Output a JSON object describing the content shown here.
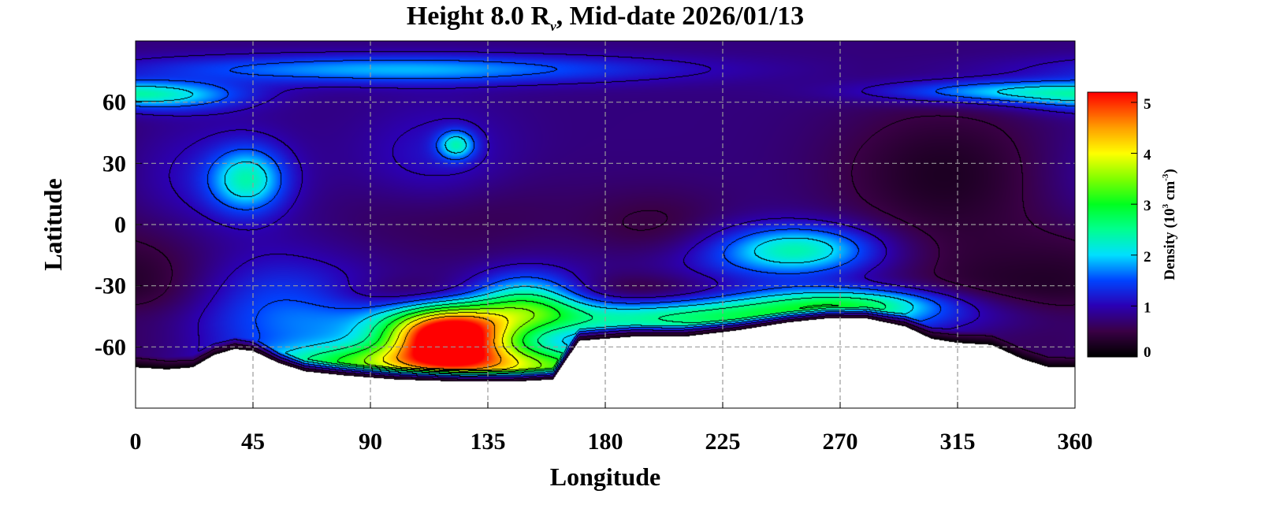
{
  "chart_data": {
    "type": "heatmap",
    "title_main": "Height 8.0 R",
    "title_sub": "v",
    "title_rest": ", Mid-date 2026/01/13",
    "xlabel": "Longitude",
    "ylabel": "Latitude",
    "xlim": [
      0,
      360
    ],
    "ylim": [
      -90,
      90
    ],
    "xticks": [
      0,
      45,
      90,
      135,
      180,
      225,
      270,
      315,
      360
    ],
    "yticks": [
      60,
      30,
      0,
      -30,
      -60
    ],
    "ytick_labels": [
      "60",
      "30",
      "0",
      "-30",
      "-60"
    ],
    "grid": true,
    "colorbar": {
      "label_prefix": "Density (10",
      "label_sup1": "3",
      "label_mid": " cm",
      "label_sup2": "-3",
      "label_suffix": ")",
      "range": [
        0,
        5.2
      ],
      "ticks": [
        0,
        1,
        2,
        3,
        4,
        5
      ]
    },
    "colormap": [
      {
        "v": 0.0,
        "color": "#000000"
      },
      {
        "v": 0.5,
        "color": "#3a0046"
      },
      {
        "v": 1.0,
        "color": "#2b00b4"
      },
      {
        "v": 1.5,
        "color": "#0044ff"
      },
      {
        "v": 2.0,
        "color": "#00e0ff"
      },
      {
        "v": 2.5,
        "color": "#00ff90"
      },
      {
        "v": 3.0,
        "color": "#00ff20"
      },
      {
        "v": 3.5,
        "color": "#80ff00"
      },
      {
        "v": 4.0,
        "color": "#ffff00"
      },
      {
        "v": 4.5,
        "color": "#ffa000"
      },
      {
        "v": 5.2,
        "color": "#ff0000"
      }
    ],
    "background_density": 0.75,
    "features": [
      {
        "lon": 100,
        "lat": 76,
        "slon": 70,
        "slat": 5,
        "amp": 1.1
      },
      {
        "lon": 335,
        "lat": 65,
        "slon": 35,
        "slat": 4,
        "amp": 1.2
      },
      {
        "lon": 10,
        "lat": 62,
        "slon": 22,
        "slat": 5,
        "amp": 0.9
      },
      {
        "lon": 43,
        "lat": 22,
        "slon": 10,
        "slat": 11,
        "amp": 1.35
      },
      {
        "lon": 25,
        "lat": 20,
        "slon": 25,
        "slat": 20,
        "amp": 0.4
      },
      {
        "lon": 123,
        "lat": 39,
        "slon": 5,
        "slat": 5,
        "amp": 1.3
      },
      {
        "lon": 255,
        "lat": -12,
        "slon": 20,
        "slat": 8,
        "amp": 1.3
      },
      {
        "lon": 230,
        "lat": -18,
        "slon": 35,
        "slat": 12,
        "amp": 0.5
      },
      {
        "lon": 115,
        "lat": 30,
        "slon": 20,
        "slat": 20,
        "amp": 0.4
      },
      {
        "lon": 55,
        "lat": -35,
        "slon": 25,
        "slat": 15,
        "amp": 0.6
      },
      {
        "lon": 95,
        "lat": -55,
        "slon": 55,
        "slat": 12,
        "amp": 0.7
      },
      {
        "lon": 90,
        "lat": -68,
        "slon": 30,
        "slat": 6,
        "amp": 1.8
      },
      {
        "lon": 150,
        "lat": -70,
        "slon": 30,
        "slat": 7,
        "amp": 2.3
      },
      {
        "lon": 150,
        "lat": -38,
        "slon": 15,
        "slat": 10,
        "amp": 1.6
      },
      {
        "lon": 225,
        "lat": -45,
        "slon": 60,
        "slat": 7,
        "amp": 2.0
      },
      {
        "lon": 275,
        "lat": -38,
        "slon": 25,
        "slat": 5,
        "amp": 1.2
      },
      {
        "lon": 120,
        "lat": -55,
        "slon": 16,
        "slat": 10,
        "amp": 4.5
      },
      {
        "lon": 195,
        "lat": -35,
        "slon": 25,
        "slat": 7,
        "amp": -0.65
      },
      {
        "lon": 110,
        "lat": -35,
        "slon": 22,
        "slat": 6,
        "amp": -0.5
      },
      {
        "lon": 310,
        "lat": 25,
        "slon": 30,
        "slat": 25,
        "amp": -0.5
      },
      {
        "lon": 200,
        "lat": -5,
        "slon": 20,
        "slat": 14,
        "amp": -0.4
      },
      {
        "lon": 120,
        "lat": 5,
        "slon": 30,
        "slat": 15,
        "amp": -0.3
      },
      {
        "lon": 10,
        "lat": -30,
        "slon": 20,
        "slat": 30,
        "amp": -0.3
      },
      {
        "lon": 330,
        "lat": -35,
        "slon": 30,
        "slat": 20,
        "amp": -0.4
      }
    ],
    "lower_boundary": [
      [
        0,
        -70
      ],
      [
        12,
        -71
      ],
      [
        22,
        -70
      ],
      [
        30,
        -64
      ],
      [
        38,
        -61
      ],
      [
        45,
        -62
      ],
      [
        55,
        -68
      ],
      [
        65,
        -72
      ],
      [
        80,
        -74
      ],
      [
        100,
        -76
      ],
      [
        125,
        -77
      ],
      [
        145,
        -77
      ],
      [
        160,
        -76
      ],
      [
        170,
        -57
      ],
      [
        190,
        -55
      ],
      [
        210,
        -55
      ],
      [
        230,
        -52
      ],
      [
        250,
        -48
      ],
      [
        265,
        -46
      ],
      [
        280,
        -46
      ],
      [
        295,
        -50
      ],
      [
        305,
        -56
      ],
      [
        315,
        -58
      ],
      [
        328,
        -59
      ],
      [
        340,
        -66
      ],
      [
        350,
        -70
      ],
      [
        360,
        -70
      ]
    ]
  }
}
